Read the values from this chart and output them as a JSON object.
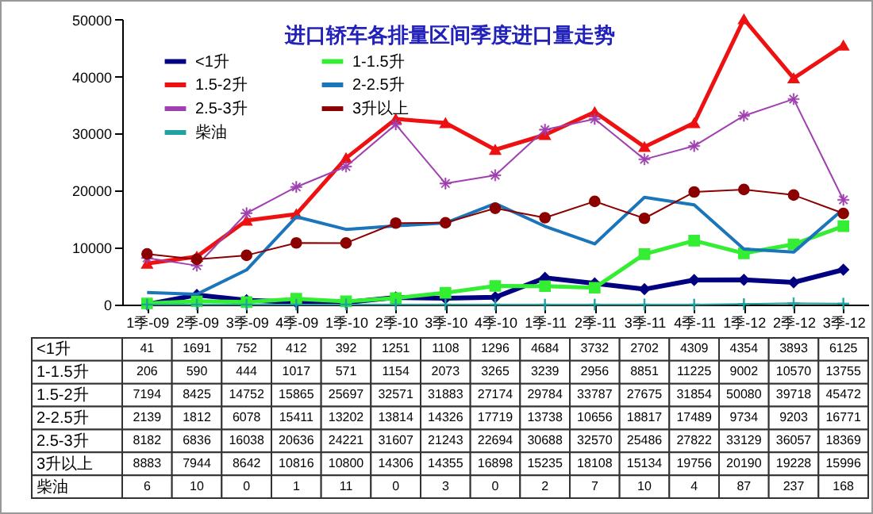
{
  "chart_data": {
    "type": "line",
    "title": "进口轿车各排量区间季度进口量走势",
    "categories": [
      "1季-09",
      "2季-09",
      "3季-09",
      "4季-09",
      "1季-10",
      "2季-10",
      "3季-10",
      "4季-10",
      "1季-11",
      "2季-11",
      "3季-11",
      "4季-11",
      "1季-12",
      "2季-12",
      "3季-12"
    ],
    "series": [
      {
        "name": "<1升",
        "color": "#000080",
        "marker": "diamond",
        "values": [
          41,
          1691,
          752,
          412,
          392,
          1251,
          1108,
          1296,
          4684,
          3732,
          2702,
          4309,
          4354,
          3893,
          6125
        ]
      },
      {
        "name": "1-1.5升",
        "color": "#33ee33",
        "marker": "square",
        "values": [
          206,
          590,
          444,
          1017,
          571,
          1154,
          2073,
          3265,
          3239,
          2956,
          8851,
          11225,
          9002,
          10570,
          13755
        ]
      },
      {
        "name": "1.5-2升",
        "color": "#ee1111",
        "marker": "triangle",
        "values": [
          7194,
          8425,
          14752,
          15865,
          25697,
          32571,
          31883,
          27174,
          29784,
          33787,
          27675,
          31854,
          50080,
          39718,
          45472
        ]
      },
      {
        "name": "2-2.5升",
        "color": "#1a75bb",
        "marker": "none",
        "values": [
          2139,
          1812,
          6078,
          15411,
          13202,
          13814,
          14326,
          17719,
          13738,
          10656,
          18817,
          17489,
          9734,
          9203,
          16771
        ]
      },
      {
        "name": "2.5-3升",
        "color": "#a040b0",
        "marker": "star",
        "values": [
          8182,
          6836,
          16038,
          20636,
          24221,
          31607,
          21243,
          22694,
          30688,
          32570,
          25486,
          27822,
          33129,
          36057,
          18369
        ]
      },
      {
        "name": "3升以上",
        "color": "#8b0000",
        "marker": "circle",
        "values": [
          8883,
          7944,
          8642,
          10816,
          10800,
          14306,
          14355,
          16898,
          15235,
          18108,
          15134,
          19756,
          20190,
          19228,
          15996
        ]
      },
      {
        "name": "柴油",
        "color": "#20a0a0",
        "marker": "cross",
        "values": [
          6,
          10,
          0,
          1,
          11,
          0,
          3,
          0,
          2,
          7,
          10,
          4,
          87,
          237,
          168
        ]
      }
    ],
    "ylim": [
      0,
      50100
    ],
    "yticks": [
      0,
      10000,
      20000,
      30000,
      40000,
      50000
    ],
    "grid": false,
    "legend": "top left",
    "line_style": "solid",
    "data_labels": true
  }
}
